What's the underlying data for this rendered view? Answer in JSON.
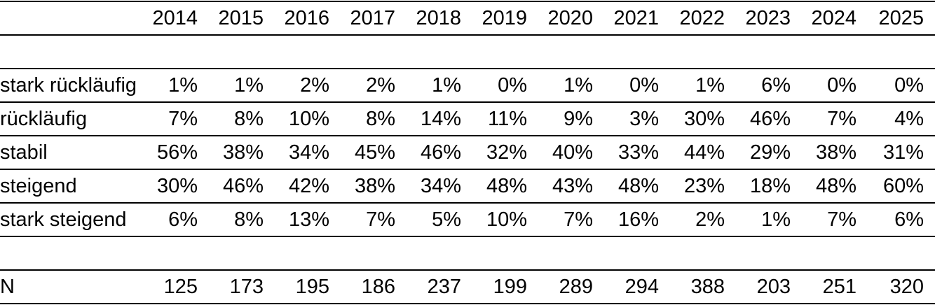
{
  "table": {
    "corner_label": "",
    "years": [
      "2014",
      "2015",
      "2016",
      "2017",
      "2018",
      "2019",
      "2020",
      "2021",
      "2022",
      "2023",
      "2024",
      "2025"
    ],
    "rows": [
      {
        "label": "stark rückläufig",
        "values": [
          "1%",
          "1%",
          "2%",
          "2%",
          "1%",
          "0%",
          "1%",
          "0%",
          "1%",
          "6%",
          "0%",
          "0%"
        ]
      },
      {
        "label": "rückläufig",
        "values": [
          "7%",
          "8%",
          "10%",
          "8%",
          "14%",
          "11%",
          "9%",
          "3%",
          "30%",
          "46%",
          "7%",
          "4%"
        ]
      },
      {
        "label": "stabil",
        "values": [
          "56%",
          "38%",
          "34%",
          "45%",
          "46%",
          "32%",
          "40%",
          "33%",
          "44%",
          "29%",
          "38%",
          "31%"
        ]
      },
      {
        "label": "steigend",
        "values": [
          "30%",
          "46%",
          "42%",
          "38%",
          "34%",
          "48%",
          "43%",
          "48%",
          "23%",
          "18%",
          "48%",
          "60%"
        ]
      },
      {
        "label": "stark steigend",
        "values": [
          "6%",
          "8%",
          "13%",
          "7%",
          "5%",
          "10%",
          "7%",
          "16%",
          "2%",
          "1%",
          "7%",
          "6%"
        ]
      }
    ],
    "n_row": {
      "label": "N",
      "values": [
        "125",
        "173",
        "195",
        "186",
        "237",
        "199",
        "289",
        "294",
        "388",
        "203",
        "251",
        "320"
      ]
    }
  },
  "chart_data": {
    "type": "table",
    "title": "",
    "categories": [
      "2014",
      "2015",
      "2016",
      "2017",
      "2018",
      "2019",
      "2020",
      "2021",
      "2022",
      "2023",
      "2024",
      "2025"
    ],
    "series": [
      {
        "name": "stark rückläufig",
        "values": [
          1,
          1,
          2,
          2,
          1,
          0,
          1,
          0,
          1,
          6,
          0,
          0
        ]
      },
      {
        "name": "rückläufig",
        "values": [
          7,
          8,
          10,
          8,
          14,
          11,
          9,
          3,
          30,
          46,
          7,
          4
        ]
      },
      {
        "name": "stabil",
        "values": [
          56,
          38,
          34,
          45,
          46,
          32,
          40,
          33,
          44,
          29,
          38,
          31
        ]
      },
      {
        "name": "steigend",
        "values": [
          30,
          46,
          42,
          38,
          34,
          48,
          43,
          48,
          23,
          18,
          48,
          60
        ]
      },
      {
        "name": "stark steigend",
        "values": [
          6,
          8,
          13,
          7,
          5,
          10,
          7,
          16,
          2,
          1,
          7,
          6
        ]
      },
      {
        "name": "N",
        "values": [
          125,
          173,
          195,
          186,
          237,
          199,
          289,
          294,
          388,
          203,
          251,
          320
        ]
      }
    ],
    "unit": "percent (N row = absolute counts)"
  },
  "colors": {
    "background": "#ffffff",
    "text": "#000000",
    "rule": "#000000"
  }
}
